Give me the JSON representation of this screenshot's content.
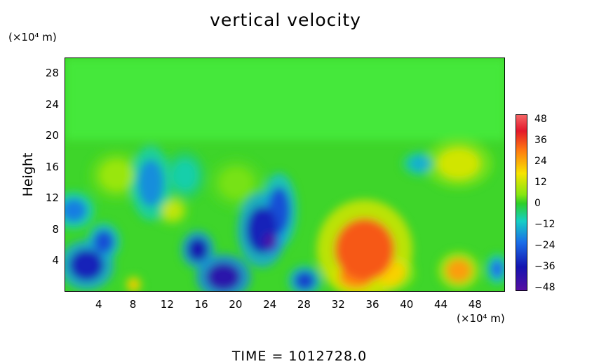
{
  "chart_data": {
    "type": "heatmap",
    "title": "vertical velocity",
    "ylabel": "Height",
    "y_unit": "(×10⁴ m)",
    "x_unit": "(×10⁴ m)",
    "footer": "TIME =  1012728.0",
    "xlim": [
      0,
      51.5
    ],
    "ylim": [
      0,
      30
    ],
    "xticks": [
      "4",
      "8",
      "12",
      "16",
      "20",
      "24",
      "28",
      "32",
      "36",
      "40",
      "44",
      "48"
    ],
    "yticks": [
      "4",
      "8",
      "12",
      "16",
      "20",
      "24",
      "28"
    ],
    "colorbar": {
      "ticks": [
        "48",
        "36",
        "24",
        "12",
        "0",
        "−12",
        "−24",
        "−36",
        "−48"
      ],
      "range": [
        -48,
        48
      ]
    },
    "features": [
      {
        "x": 35,
        "y": 5.5,
        "rx": 3.5,
        "ry": 4,
        "value": 40
      },
      {
        "x": 34,
        "y": 2,
        "rx": 2,
        "ry": 1.5,
        "value": 34
      },
      {
        "x": 38,
        "y": 2.5,
        "rx": 1.8,
        "ry": 1.5,
        "value": 26
      },
      {
        "x": 46,
        "y": 2.8,
        "rx": 1.5,
        "ry": 1.5,
        "value": 32
      },
      {
        "x": 46,
        "y": 16.5,
        "rx": 2.5,
        "ry": 2,
        "value": 20
      },
      {
        "x": 8,
        "y": 1,
        "rx": 0.6,
        "ry": 0.7,
        "value": 28
      },
      {
        "x": 12.5,
        "y": 10.5,
        "rx": 1.2,
        "ry": 1.2,
        "value": 18
      },
      {
        "x": 24,
        "y": 6.5,
        "rx": 0.7,
        "ry": 1,
        "value": -46
      },
      {
        "x": 23,
        "y": 8,
        "rx": 1.8,
        "ry": 3,
        "value": -34
      },
      {
        "x": 25,
        "y": 10.5,
        "rx": 1.3,
        "ry": 3,
        "value": -28
      },
      {
        "x": 18.5,
        "y": 2,
        "rx": 2,
        "ry": 1.8,
        "value": -40
      },
      {
        "x": 15.5,
        "y": 5.5,
        "rx": 1.2,
        "ry": 1.5,
        "value": -36
      },
      {
        "x": 2.5,
        "y": 3.5,
        "rx": 2,
        "ry": 2,
        "value": -34
      },
      {
        "x": 4.5,
        "y": 6.5,
        "rx": 1.2,
        "ry": 1.5,
        "value": -28
      },
      {
        "x": 1,
        "y": 10.5,
        "rx": 1.5,
        "ry": 1.5,
        "value": -22
      },
      {
        "x": 10,
        "y": 14,
        "rx": 1.5,
        "ry": 3,
        "value": -20
      },
      {
        "x": 28,
        "y": 1.5,
        "rx": 1.2,
        "ry": 1.2,
        "value": -30
      },
      {
        "x": 41.5,
        "y": 16.5,
        "rx": 1.3,
        "ry": 1,
        "value": -16
      },
      {
        "x": 50.5,
        "y": 3,
        "rx": 0.8,
        "ry": 1.2,
        "value": -24
      },
      {
        "x": 6,
        "y": 15,
        "rx": 2,
        "ry": 2,
        "value": 14
      },
      {
        "x": 20,
        "y": 14,
        "rx": 2,
        "ry": 2,
        "value": 10
      },
      {
        "x": 14,
        "y": 15,
        "rx": 1.5,
        "ry": 2,
        "value": -10
      }
    ]
  }
}
